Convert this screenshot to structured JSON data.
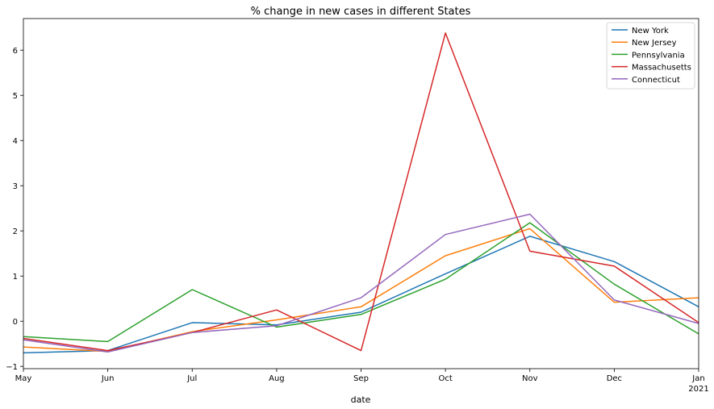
{
  "chart_data": {
    "type": "line",
    "title": "% change in new cases in different States",
    "xlabel": "date",
    "ylabel": "",
    "x": [
      "May",
      "Jun",
      "Jul",
      "Aug",
      "Sep",
      "Oct",
      "Nov",
      "Dec",
      "Jan"
    ],
    "x_tick_sublabels": {
      "Jan": "2021"
    },
    "yticks": [
      -1,
      0,
      1,
      2,
      3,
      4,
      5,
      6
    ],
    "ylim": [
      -1.05,
      6.7
    ],
    "grid": false,
    "legend_position": "top-right",
    "series": [
      {
        "name": "New York",
        "color": "#1f77b4",
        "values": [
          -0.7,
          -0.65,
          -0.03,
          -0.08,
          0.2,
          1.05,
          1.88,
          1.32,
          0.32
        ]
      },
      {
        "name": "New Jersey",
        "color": "#ff7f0e",
        "values": [
          -0.57,
          -0.67,
          -0.23,
          0.03,
          0.32,
          1.45,
          2.05,
          0.42,
          0.52
        ]
      },
      {
        "name": "Pennsylvania",
        "color": "#2ca02c",
        "values": [
          -0.34,
          -0.45,
          0.7,
          -0.13,
          0.15,
          0.93,
          2.18,
          0.82,
          -0.28
        ]
      },
      {
        "name": "Massachusetts",
        "color": "#d62728",
        "values": [
          -0.38,
          -0.65,
          -0.25,
          0.25,
          -0.65,
          6.38,
          1.55,
          1.22,
          -0.03
        ]
      },
      {
        "name": "Connecticut",
        "color": "#9467bd",
        "values": [
          -0.41,
          -0.68,
          -0.25,
          -0.1,
          0.52,
          1.92,
          2.37,
          0.47,
          -0.05
        ]
      }
    ]
  }
}
